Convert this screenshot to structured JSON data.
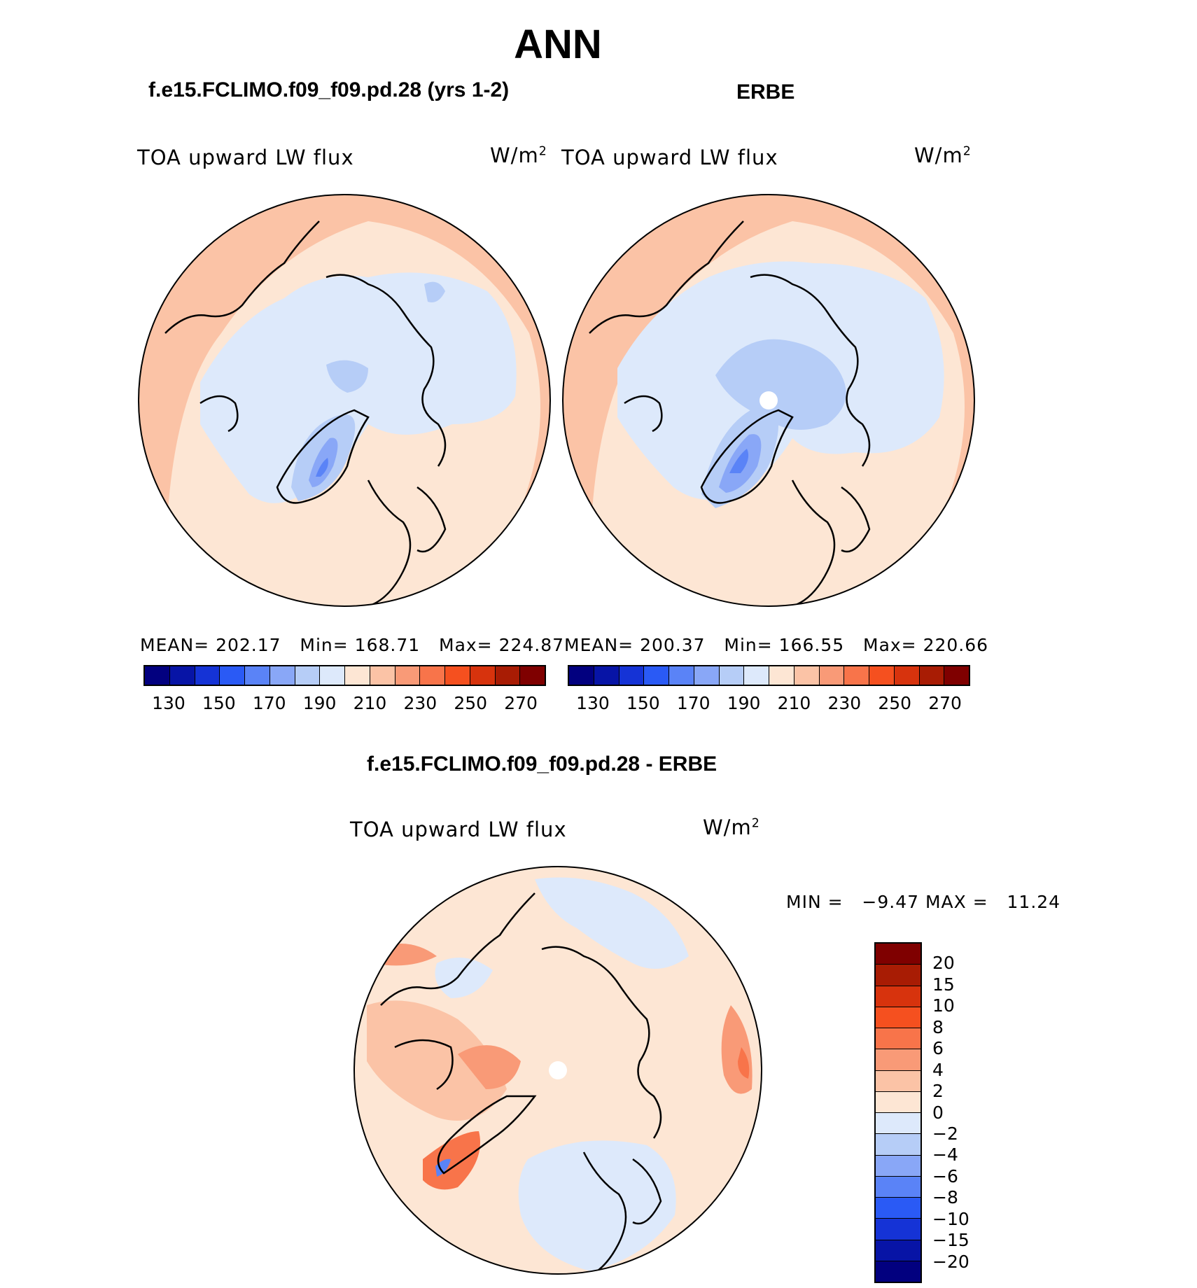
{
  "title": "ANN",
  "panels": {
    "model": {
      "header": "f.e15.FCLIMO.f09_f09.pd.28 (yrs 1-2)",
      "variable": "TOA upward LW flux",
      "units_base": "W/m",
      "units_exp": "2",
      "stats": {
        "mean_label": "MEAN=",
        "mean": "202.17",
        "min_label": "Min=",
        "min": "168.71",
        "max_label": "Max=",
        "max": "224.87"
      }
    },
    "obs": {
      "header": "ERBE",
      "variable": "TOA upward LW flux",
      "units_base": "W/m",
      "units_exp": "2",
      "stats": {
        "mean_label": "MEAN=",
        "mean": "200.37",
        "min_label": "Min=",
        "min": "166.55",
        "max_label": "Max=",
        "max": "220.66"
      }
    },
    "diff": {
      "header": "f.e15.FCLIMO.f09_f09.pd.28 - ERBE",
      "variable": "TOA upward LW flux",
      "units_base": "W/m",
      "units_exp": "2",
      "minmax": {
        "min_label": "MIN =",
        "min": "−9.47",
        "max_label": "MAX =",
        "max": "11.24"
      }
    }
  },
  "colorbars": {
    "abs_colors": [
      "#02007f",
      "#0714a6",
      "#1533d6",
      "#2a5af5",
      "#5a83f7",
      "#89a7f7",
      "#b6cdf7",
      "#dde9fb",
      "#fde6d4",
      "#fbc3a6",
      "#f99a77",
      "#f8744a",
      "#f5501f",
      "#d7330d",
      "#a81c04",
      "#7f0000"
    ],
    "abs_ticks": [
      "130",
      "150",
      "170",
      "190",
      "210",
      "230",
      "250",
      "270"
    ],
    "diff_colors": [
      "#7f0000",
      "#a81c04",
      "#d7330d",
      "#f5501f",
      "#f8744a",
      "#f99a77",
      "#fbc3a6",
      "#fde6d4",
      "#dde9fb",
      "#b6cdf7",
      "#89a7f7",
      "#5a83f7",
      "#2a5af5",
      "#1533d6",
      "#0714a6",
      "#02007f"
    ],
    "diff_ticks": [
      "20",
      "15",
      "10",
      "8",
      "6",
      "4",
      "2",
      "0",
      "−2",
      "−4",
      "−6",
      "−8",
      "−10",
      "−15",
      "−20"
    ]
  },
  "maps": {
    "ocean_color": "#fbc3a6",
    "land_color": "#fde6d4",
    "cold_color": "#dde9fb",
    "colder_color": "#b6cdf7",
    "coldest_color": "#89a7f7",
    "core_color": "#5a83f7"
  }
}
